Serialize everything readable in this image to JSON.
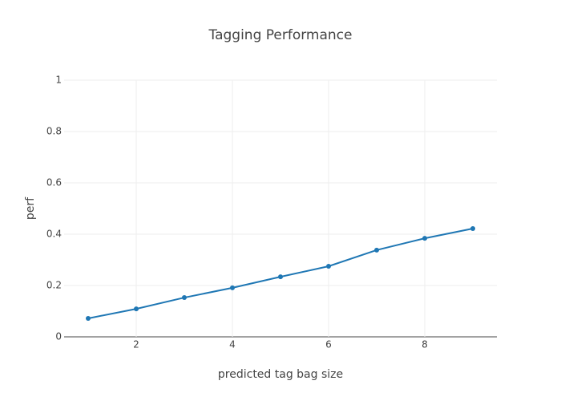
{
  "chart_data": {
    "type": "line",
    "title": "Tagging Performance",
    "x_label": "predicted tag bag size",
    "y_label": "perf",
    "x": [
      1,
      2,
      3,
      4,
      5,
      6,
      7,
      8,
      9
    ],
    "series": [
      {
        "name": "perf",
        "color": "#1f77b4",
        "values": [
          0.072,
          0.109,
          0.153,
          0.191,
          0.234,
          0.275,
          0.338,
          0.384,
          0.422
        ]
      }
    ],
    "xlim": [
      0.5,
      9.5
    ],
    "xticks": [
      2,
      4,
      6,
      8
    ],
    "ylim": [
      0,
      1
    ],
    "yticks": [
      0,
      0.2,
      0.4,
      0.6,
      0.8,
      1
    ],
    "grid": true
  }
}
